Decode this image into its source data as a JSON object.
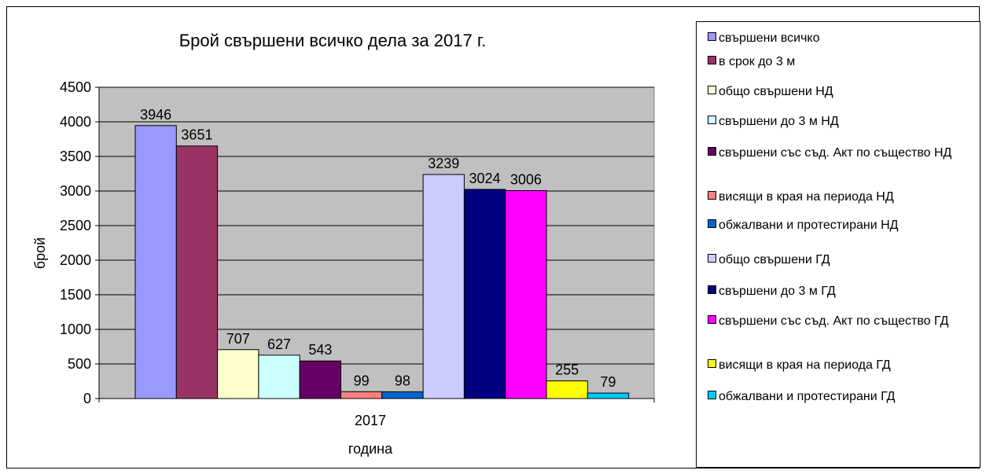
{
  "chart_data": {
    "type": "bar",
    "title": "Брой свършени всичко дела за 2017 г.",
    "xlabel": "година",
    "ylabel": "брой",
    "categories": [
      "2017"
    ],
    "ylim": [
      0,
      4500
    ],
    "yticks": [
      "0",
      "500",
      "1000",
      "1500",
      "2000",
      "2500",
      "3000",
      "3500",
      "4000",
      "4500"
    ],
    "grid": true,
    "legend_position": "right",
    "series": [
      {
        "name": "свършени всичко",
        "values": [
          3946
        ],
        "label": "3946",
        "color": "#9999FF"
      },
      {
        "name": "в срок до 3 м",
        "values": [
          3651
        ],
        "label": "3651",
        "color": "#993366"
      },
      {
        "name": "общо свършени НД",
        "values": [
          707
        ],
        "label": "707",
        "color": "#FFFFCC"
      },
      {
        "name": "свършени до 3 м НД",
        "values": [
          627
        ],
        "label": "627",
        "color": "#CCFFFF"
      },
      {
        "name": "свършени със съд. Акт по същество НД",
        "values": [
          543
        ],
        "label": "543",
        "color": "#660066"
      },
      {
        "name": "висящи в края на периода НД",
        "values": [
          99
        ],
        "label": "99",
        "color": "#FF8080"
      },
      {
        "name": "обжалвани и протестирани НД",
        "values": [
          98
        ],
        "label": "98",
        "color": "#0066CC"
      },
      {
        "name": "общо свършени ГД",
        "values": [
          3239
        ],
        "label": "3239",
        "color": "#CCCCFF"
      },
      {
        "name": "свършени до 3 м ГД",
        "values": [
          3024
        ],
        "label": "3024",
        "color": "#000080"
      },
      {
        "name": "свършени със съд. Акт по същество ГД",
        "values": [
          3006
        ],
        "label": "3006",
        "color": "#FF00FF"
      },
      {
        "name": "висящи в края на периода ГД",
        "values": [
          255
        ],
        "label": "255",
        "color": "#FFFF00"
      },
      {
        "name": "обжалвани и протестирани ГД",
        "values": [
          79
        ],
        "label": "79",
        "color": "#00CCFF"
      }
    ]
  }
}
